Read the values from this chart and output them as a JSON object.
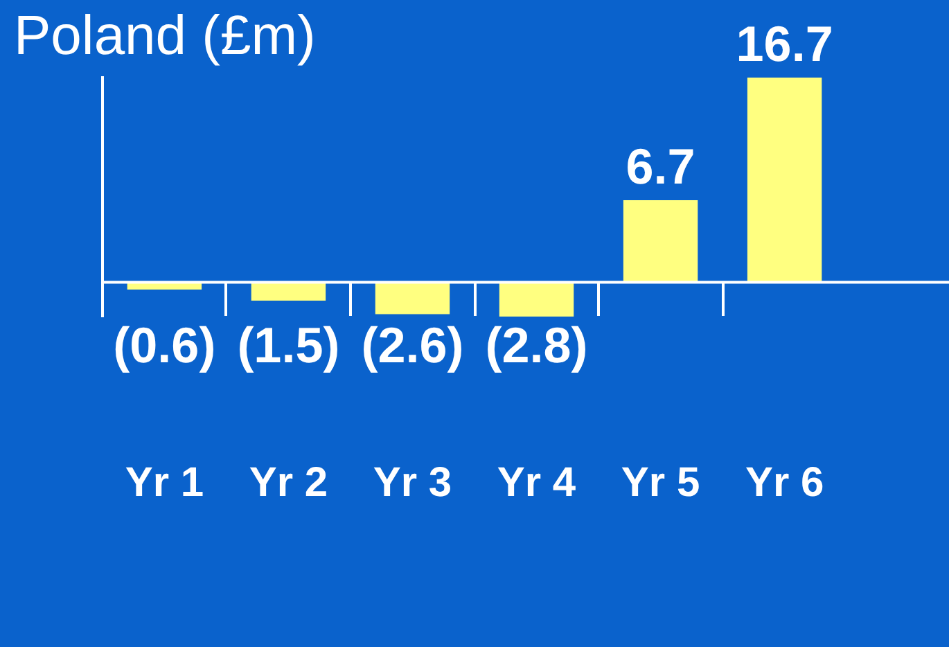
{
  "chart_data": {
    "type": "bar",
    "title": "Poland (£m)",
    "categories": [
      "Yr 1",
      "Yr 2",
      "Yr 3",
      "Yr 4",
      "Yr 5",
      "Yr 6"
    ],
    "values": [
      -0.6,
      -1.5,
      -2.6,
      -2.8,
      6.7,
      16.7
    ],
    "value_labels": [
      "(0.6)",
      "(1.5)",
      "(2.6)",
      "(2.8)",
      "6.7",
      "16.7"
    ],
    "color": "#ffff80",
    "grid": false,
    "legend": false
  }
}
